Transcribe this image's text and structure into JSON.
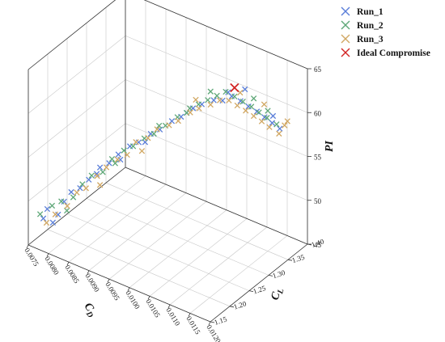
{
  "chart_data": {
    "type": "scatter",
    "title": "",
    "xlabel": "C",
    "xlabel_sub": "D",
    "ylabel": "C",
    "ylabel_sub": "L",
    "zlabel": "PI",
    "xlim": [
      0.0075,
      0.012
    ],
    "ylim": [
      1.15,
      1.4
    ],
    "zlim": [
      45,
      65
    ],
    "x_ticks": [
      "0.0075",
      "0.0080",
      "0.0085",
      "0.0090",
      "0.0095",
      "0.0100",
      "0.0105",
      "0.0110",
      "0.0115",
      "0.0120"
    ],
    "y_ticks": [
      "1.15",
      "1.20",
      "1.25",
      "1.30",
      "1.35",
      "1.40"
    ],
    "z_ticks": [
      "45",
      "50",
      "55",
      "60",
      "65"
    ],
    "grid": true,
    "legend_position": "top-right",
    "colors": {
      "Run_1": "#5b7fd9",
      "Run_2": "#5fa878",
      "Run_3": "#d1a864",
      "Ideal Compromise": "#d22424"
    },
    "series": [
      {
        "name": "Run_1",
        "points": [
          [
            0.00765,
            1.173,
            47.5
          ],
          [
            0.0077,
            1.178,
            48.5
          ],
          [
            0.0079,
            1.185,
            48.0
          ],
          [
            0.008,
            1.19,
            49.5
          ],
          [
            0.0081,
            1.198,
            50.5
          ],
          [
            0.00825,
            1.205,
            51.0
          ],
          [
            0.0084,
            1.212,
            52.0
          ],
          [
            0.0086,
            1.22,
            53.5
          ],
          [
            0.00875,
            1.228,
            54.0
          ],
          [
            0.0089,
            1.236,
            55.0
          ],
          [
            0.0091,
            1.245,
            56.0
          ],
          [
            0.00925,
            1.252,
            56.5
          ],
          [
            0.00945,
            1.262,
            57.5
          ],
          [
            0.0096,
            1.27,
            58.0
          ],
          [
            0.0098,
            1.28,
            59.0
          ],
          [
            0.00995,
            1.288,
            59.5
          ],
          [
            0.01015,
            1.298,
            60.5
          ],
          [
            0.0103,
            1.305,
            61.0
          ],
          [
            0.0105,
            1.315,
            61.5
          ],
          [
            0.01065,
            1.322,
            61.5
          ],
          [
            0.0108,
            1.33,
            62.0
          ],
          [
            0.01095,
            1.337,
            61.5
          ],
          [
            0.0111,
            1.342,
            61.0
          ],
          [
            0.01125,
            1.348,
            60.5
          ],
          [
            0.0114,
            1.352,
            60.0
          ],
          [
            0.01155,
            1.356,
            59.5
          ],
          [
            0.0117,
            1.36,
            59.0
          ],
          [
            0.0085,
            1.222,
            52.5
          ],
          [
            0.00935,
            1.258,
            56.5
          ],
          [
            0.01005,
            1.292,
            60.0
          ],
          [
            0.01075,
            1.326,
            62.5
          ],
          [
            0.01105,
            1.338,
            63.0
          ],
          [
            0.0116,
            1.353,
            60.5
          ],
          [
            0.0078,
            1.182,
            47.0
          ],
          [
            0.00895,
            1.236,
            54.5
          ]
        ]
      },
      {
        "name": "Run_2",
        "points": [
          [
            0.0076,
            1.17,
            48.0
          ],
          [
            0.0078,
            1.18,
            49.0
          ],
          [
            0.00795,
            1.188,
            49.5
          ],
          [
            0.00815,
            1.198,
            50.0
          ],
          [
            0.0083,
            1.206,
            51.5
          ],
          [
            0.00845,
            1.214,
            52.5
          ],
          [
            0.00865,
            1.222,
            53.0
          ],
          [
            0.0088,
            1.23,
            54.5
          ],
          [
            0.009,
            1.24,
            55.5
          ],
          [
            0.00915,
            1.248,
            56.0
          ],
          [
            0.00935,
            1.256,
            57.0
          ],
          [
            0.0095,
            1.265,
            57.5
          ],
          [
            0.0097,
            1.274,
            58.5
          ],
          [
            0.0099,
            1.284,
            59.5
          ],
          [
            0.01005,
            1.292,
            60.0
          ],
          [
            0.01025,
            1.302,
            61.0
          ],
          [
            0.0104,
            1.31,
            61.5
          ],
          [
            0.01055,
            1.318,
            62.0
          ],
          [
            0.0107,
            1.325,
            62.5
          ],
          [
            0.01085,
            1.332,
            62.0
          ],
          [
            0.011,
            1.338,
            61.5
          ],
          [
            0.01115,
            1.344,
            61.0
          ],
          [
            0.0113,
            1.348,
            60.5
          ],
          [
            0.01145,
            1.353,
            60.0
          ],
          [
            0.01165,
            1.357,
            59.5
          ],
          [
            0.00885,
            1.233,
            54.0
          ],
          [
            0.0096,
            1.268,
            58.5
          ],
          [
            0.01045,
            1.312,
            62.5
          ],
          [
            0.0112,
            1.345,
            62.0
          ],
          [
            0.00805,
            1.192,
            48.5
          ],
          [
            0.0101,
            1.295,
            60.5
          ],
          [
            0.0115,
            1.35,
            61.0
          ]
        ]
      },
      {
        "name": "Run_3",
        "points": [
          [
            0.0077,
            1.176,
            47.0
          ],
          [
            0.00785,
            1.183,
            48.0
          ],
          [
            0.00805,
            1.193,
            49.0
          ],
          [
            0.0082,
            1.202,
            50.5
          ],
          [
            0.00835,
            1.21,
            51.0
          ],
          [
            0.00855,
            1.218,
            52.5
          ],
          [
            0.0087,
            1.226,
            53.5
          ],
          [
            0.0089,
            1.234,
            54.5
          ],
          [
            0.00905,
            1.243,
            55.0
          ],
          [
            0.0092,
            1.25,
            56.5
          ],
          [
            0.0094,
            1.26,
            57.0
          ],
          [
            0.00955,
            1.268,
            58.0
          ],
          [
            0.00975,
            1.278,
            58.5
          ],
          [
            0.0099,
            1.286,
            59.0
          ],
          [
            0.0101,
            1.296,
            60.0
          ],
          [
            0.01025,
            1.303,
            60.5
          ],
          [
            0.01045,
            1.312,
            61.0
          ],
          [
            0.0106,
            1.32,
            61.5
          ],
          [
            0.01075,
            1.328,
            61.5
          ],
          [
            0.0109,
            1.334,
            61.0
          ],
          [
            0.01105,
            1.34,
            60.5
          ],
          [
            0.0112,
            1.345,
            60.0
          ],
          [
            0.01135,
            1.35,
            59.5
          ],
          [
            0.0115,
            1.354,
            59.0
          ],
          [
            0.0117,
            1.358,
            58.5
          ],
          [
            0.0118,
            1.362,
            59.5
          ],
          [
            0.0093,
            1.255,
            55.5
          ],
          [
            0.0102,
            1.3,
            61.5
          ],
          [
            0.01095,
            1.336,
            62.5
          ],
          [
            0.0114,
            1.351,
            61.5
          ],
          [
            0.0086,
            1.22,
            51.5
          ],
          [
            0.01185,
            1.364,
            60.0
          ]
        ]
      },
      {
        "name": "Ideal Compromise",
        "points": [
          [
            0.01085,
            1.332,
            63.0
          ]
        ]
      }
    ]
  }
}
